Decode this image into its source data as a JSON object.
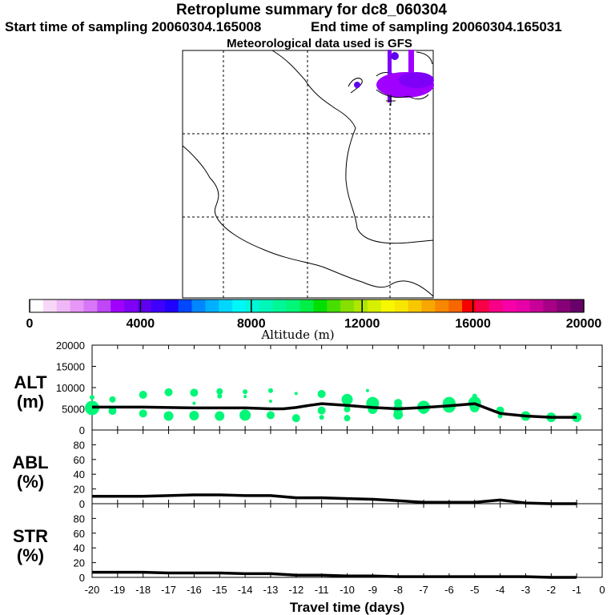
{
  "header": {
    "title": "Retroplume summary for dc8_060304",
    "start": "Start time of sampling 20060304.165008",
    "end": "End time of sampling 20060304.165031",
    "met": "Meteorological data used is GFS"
  },
  "colorbar": {
    "label": "Altitude (m)",
    "ticks": [
      "0",
      "4000",
      "8000",
      "12000",
      "16000",
      "20000"
    ],
    "colors": [
      "#ffffff",
      "#f7d7f7",
      "#efb7f7",
      "#e797f7",
      "#d777f7",
      "#bf47f7",
      "#9f00ff",
      "#7f00f7",
      "#5f00ef",
      "#3f00ff",
      "#2000ff",
      "#0047ff",
      "#0087ff",
      "#00afff",
      "#00d7ff",
      "#00f7f7",
      "#00f7d7",
      "#00f7b7",
      "#00f797",
      "#00f777",
      "#00ef47",
      "#00df00",
      "#47df00",
      "#87df00",
      "#afe700",
      "#d7ef00",
      "#f7f700",
      "#f7e700",
      "#f7c700",
      "#f7a700",
      "#f78700",
      "#f76700",
      "#f70000",
      "#f70047",
      "#f70087",
      "#f700a7",
      "#e700a7",
      "#c70097",
      "#a70087",
      "#870077",
      "#670067"
    ]
  },
  "chart_data": [
    {
      "type": "scatter",
      "panel": "ALT",
      "ylabel": "ALT\n(m)",
      "ylabel_line1": "ALT",
      "ylabel_line2": "(m)",
      "ylim": [
        0,
        20000
      ],
      "yticks": [
        "0",
        "5000",
        "10000",
        "15000",
        "20000"
      ],
      "xlim": [
        -20,
        0
      ],
      "mean_line": {
        "x": [
          -20,
          -19,
          -18,
          -17,
          -16,
          -15,
          -14,
          -13,
          -12.5,
          -12,
          -11.5,
          -11,
          -10,
          -9,
          -8,
          -7,
          -6,
          -5,
          -4,
          -3,
          -2,
          -1
        ],
        "y": [
          5400,
          5400,
          5400,
          5300,
          5200,
          5200,
          5200,
          5000,
          5000,
          5300,
          5800,
          6200,
          5800,
          5300,
          5000,
          5300,
          5700,
          6200,
          3900,
          3300,
          3000,
          3000
        ]
      },
      "point_color": "#00f777",
      "points": [
        {
          "x": -20,
          "y": 5200,
          "s": 9
        },
        {
          "x": -20,
          "y": 7700,
          "s": 3
        },
        {
          "x": -19.2,
          "y": 7200,
          "s": 4
        },
        {
          "x": -19.2,
          "y": 4500,
          "s": 5
        },
        {
          "x": -18,
          "y": 8300,
          "s": 5
        },
        {
          "x": -18,
          "y": 3900,
          "s": 5
        },
        {
          "x": -17,
          "y": 8900,
          "s": 5
        },
        {
          "x": -17,
          "y": 3300,
          "s": 6
        },
        {
          "x": -16,
          "y": 8800,
          "s": 5
        },
        {
          "x": -16,
          "y": 6300,
          "s": 2
        },
        {
          "x": -16,
          "y": 3400,
          "s": 6
        },
        {
          "x": -15,
          "y": 9100,
          "s": 4
        },
        {
          "x": -15,
          "y": 8000,
          "s": 3
        },
        {
          "x": -15,
          "y": 3300,
          "s": 6
        },
        {
          "x": -14,
          "y": 9000,
          "s": 3
        },
        {
          "x": -14,
          "y": 7900,
          "s": 2
        },
        {
          "x": -14,
          "y": 3500,
          "s": 7
        },
        {
          "x": -13,
          "y": 9300,
          "s": 3
        },
        {
          "x": -13,
          "y": 6800,
          "s": 2
        },
        {
          "x": -13,
          "y": 3500,
          "s": 5
        },
        {
          "x": -12,
          "y": 8600,
          "s": 2
        },
        {
          "x": -12,
          "y": 2800,
          "s": 5
        },
        {
          "x": -11,
          "y": 8500,
          "s": 5
        },
        {
          "x": -11,
          "y": 4600,
          "s": 5
        },
        {
          "x": -11,
          "y": 3000,
          "s": 3
        },
        {
          "x": -10,
          "y": 7200,
          "s": 7
        },
        {
          "x": -10,
          "y": 4900,
          "s": 4
        },
        {
          "x": -10,
          "y": 2800,
          "s": 4
        },
        {
          "x": -9.2,
          "y": 9300,
          "s": 2
        },
        {
          "x": -9,
          "y": 6300,
          "s": 8
        },
        {
          "x": -9,
          "y": 4900,
          "s": 6
        },
        {
          "x": -8,
          "y": 6400,
          "s": 5
        },
        {
          "x": -8,
          "y": 5000,
          "s": 6
        },
        {
          "x": -8,
          "y": 3600,
          "s": 6
        },
        {
          "x": -7,
          "y": 5400,
          "s": 8
        },
        {
          "x": -7,
          "y": 4700,
          "s": 5
        },
        {
          "x": -6,
          "y": 6300,
          "s": 8
        },
        {
          "x": -6,
          "y": 5600,
          "s": 8
        },
        {
          "x": -5,
          "y": 8000,
          "s": 3
        },
        {
          "x": -5,
          "y": 6400,
          "s": 8
        },
        {
          "x": -5,
          "y": 5300,
          "s": 6
        },
        {
          "x": -4,
          "y": 4600,
          "s": 5
        },
        {
          "x": -4,
          "y": 3300,
          "s": 3
        },
        {
          "x": -3,
          "y": 3300,
          "s": 6
        },
        {
          "x": -2,
          "y": 3000,
          "s": 6
        },
        {
          "x": -1,
          "y": 3000,
          "s": 6
        }
      ]
    },
    {
      "type": "line",
      "panel": "ABL",
      "ylabel": "ABL\n(%)",
      "ylabel_line1": "ABL",
      "ylabel_line2": "(%)",
      "ylim": [
        0,
        100
      ],
      "yticks": [
        "0",
        "20",
        "40",
        "60",
        "80"
      ],
      "xlim": [
        -20,
        0
      ],
      "x": [
        -20,
        -19,
        -18,
        -17,
        -16,
        -15,
        -14,
        -13,
        -12,
        -11,
        -10,
        -9,
        -8,
        -7,
        -6,
        -5,
        -4,
        -3,
        -2,
        -1
      ],
      "y": [
        10,
        10,
        10,
        11,
        12,
        12,
        11,
        11,
        8,
        8,
        7,
        6,
        4,
        2,
        2,
        2,
        5,
        1,
        0,
        0
      ]
    },
    {
      "type": "line",
      "panel": "STR",
      "ylabel": "STR\n(%)",
      "ylabel_line1": "STR",
      "ylabel_line2": "(%)",
      "ylim": [
        0,
        100
      ],
      "yticks": [
        "0",
        "20",
        "40",
        "60",
        "80"
      ],
      "xlim": [
        -20,
        0
      ],
      "x": [
        -20,
        -19,
        -18,
        -17,
        -16,
        -15,
        -14,
        -13,
        -12,
        -11,
        -10,
        -9,
        -8,
        -7,
        -6,
        -5,
        -4,
        -3,
        -2,
        -1
      ],
      "y": [
        7,
        7,
        7,
        6,
        6,
        6,
        5,
        5,
        3,
        3,
        2,
        2,
        1,
        1,
        1,
        1,
        1,
        1,
        0,
        0
      ],
      "xlabel": "Travel time (days)",
      "xticks": [
        "-20",
        "-19",
        "-18",
        "-17",
        "-16",
        "-15",
        "-14",
        "-13",
        "-12",
        "-11",
        "-10",
        "-9",
        "-8",
        "-7",
        "-6",
        "-5",
        "-4",
        "-3",
        "-2",
        "-1",
        "0"
      ]
    }
  ]
}
